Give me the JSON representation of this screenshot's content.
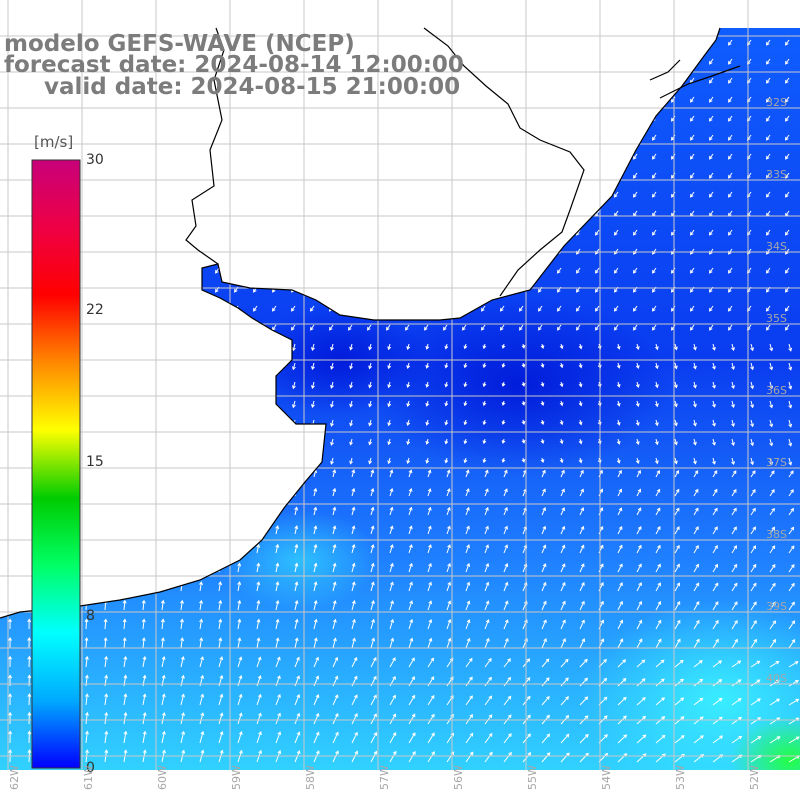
{
  "header": {
    "line1": "modelo GEFS-WAVE (NCEP)",
    "line2": "forecast date: 2024-08-14 12:00:00",
    "line3": "valid date: 2024-08-15 21:00:00"
  },
  "colorbar": {
    "units": "[m/s]",
    "ticks": [
      "30",
      "22",
      "15",
      "8",
      "0"
    ],
    "tick_values": [
      30,
      22,
      15,
      8,
      0
    ],
    "min": 0,
    "max": 30,
    "gradient_colors": [
      "#0000ff",
      "#00aaff",
      "#00ffff",
      "#00ff66",
      "#00cc00",
      "#ffff00",
      "#ff8800",
      "#ff0000",
      "#ee0044",
      "#c8007a"
    ]
  },
  "map": {
    "field": "wind vector field",
    "ocean_low_color": "#0a3cf0",
    "ocean_mid_color": "#1f80ff",
    "ocean_high_color": "#33ddff",
    "land_color": "#ffffff",
    "grid_color": "#c8c8c8",
    "coast_color": "#000000",
    "arrow_color": "#ffffff",
    "lat_labels": [
      "32S",
      "33S",
      "34S",
      "35S",
      "36S",
      "37S",
      "38S",
      "39S",
      "40S"
    ],
    "lon_labels": [
      "62W",
      "61W",
      "60W",
      "59W",
      "58W",
      "57W",
      "56W",
      "55W",
      "54W",
      "53W",
      "52W"
    ]
  }
}
